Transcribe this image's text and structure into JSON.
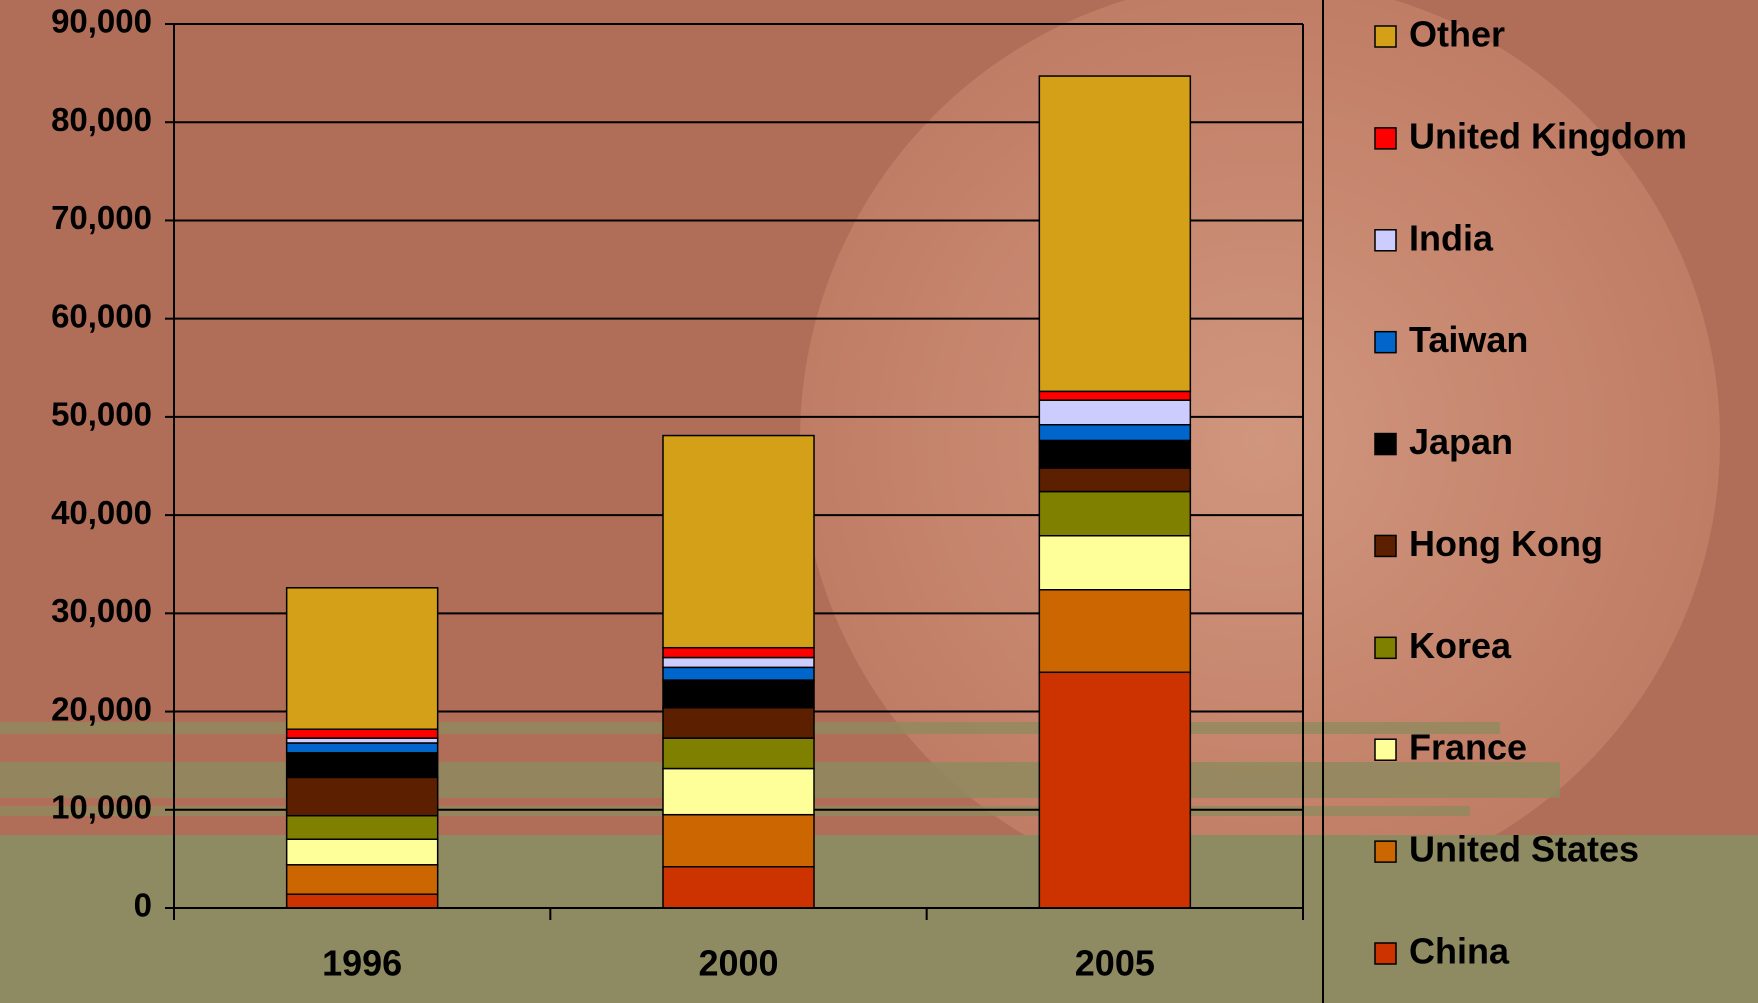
{
  "chart_data": {
    "type": "stacked_bar",
    "categories": [
      "1996",
      "2000",
      "2005"
    ],
    "series": [
      {
        "name": "China",
        "color": "#cc3300",
        "values": [
          1400,
          4200,
          24000
        ]
      },
      {
        "name": "United States",
        "color": "#cc6600",
        "values": [
          3000,
          5300,
          8400
        ]
      },
      {
        "name": "France",
        "color": "#ffff99",
        "values": [
          2600,
          4700,
          5500
        ]
      },
      {
        "name": "Korea",
        "color": "#808000",
        "values": [
          2400,
          3100,
          4500
        ]
      },
      {
        "name": "Hong Kong",
        "color": "#5c2000",
        "values": [
          3900,
          3100,
          2400
        ]
      },
      {
        "name": "Japan",
        "color": "#000000",
        "values": [
          2500,
          2800,
          2800
        ]
      },
      {
        "name": "Taiwan",
        "color": "#0066cc",
        "values": [
          1000,
          1300,
          1600
        ]
      },
      {
        "name": "India",
        "color": "#ccccff",
        "values": [
          500,
          1000,
          2500
        ]
      },
      {
        "name": "United Kingdom",
        "color": "#ff0000",
        "values": [
          900,
          1000,
          900
        ]
      },
      {
        "name": "Other",
        "color": "#d4a017",
        "values": [
          14400,
          21600,
          32100
        ]
      }
    ],
    "ylim": [
      0,
      90000
    ],
    "yticks": [
      0,
      {
        "value": 10000,
        "label": "10,000"
      },
      {
        "value": 20000,
        "label": "20,000"
      },
      {
        "value": 30000,
        "label": "30,000"
      },
      {
        "value": 40000,
        "label": "40,000"
      },
      {
        "value": 50000,
        "label": "50,000"
      },
      {
        "value": 60000,
        "label": "60,000"
      },
      {
        "value": 70000,
        "label": "70,000"
      },
      {
        "value": 80000,
        "label": "80,000"
      },
      {
        "value": 90000,
        "label": "90,000"
      }
    ],
    "grid": true,
    "legend": "right"
  }
}
